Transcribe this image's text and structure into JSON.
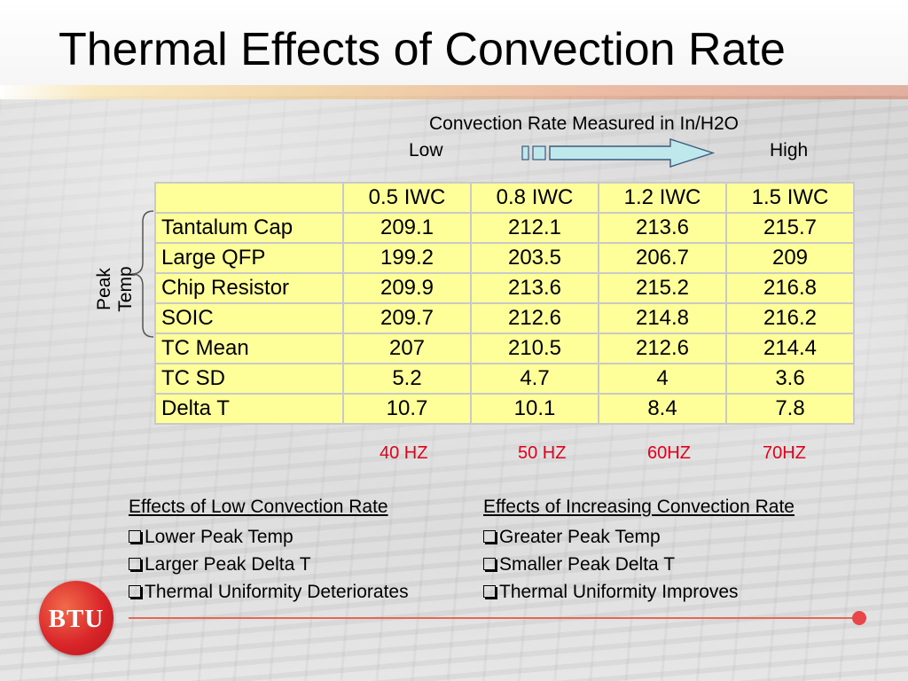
{
  "slide": {
    "title": "Thermal Effects of Convection Rate",
    "convection_label": "Convection Rate Measured in In/H2O",
    "low_label": "Low",
    "high_label": "High",
    "peak_temp_label": "Peak Temp",
    "logo_text": "BTU",
    "accent_color": "#e2001a",
    "cell_color": "#ffff99"
  },
  "table": {
    "headers": [
      "",
      "0.5 IWC",
      "0.8 IWC",
      "1.2 IWC",
      "1.5 IWC"
    ],
    "rows": [
      {
        "label": "Tantalum Cap",
        "values": [
          "209.1",
          "212.1",
          "213.6",
          "215.7"
        ]
      },
      {
        "label": "Large QFP",
        "values": [
          "199.2",
          "203.5",
          "206.7",
          "209"
        ]
      },
      {
        "label": "Chip Resistor",
        "values": [
          "209.9",
          "213.6",
          "215.2",
          "216.8"
        ]
      },
      {
        "label": "SOIC",
        "values": [
          "209.7",
          "212.6",
          "214.8",
          "216.2"
        ]
      },
      {
        "label": "TC Mean",
        "values": [
          "207",
          "210.5",
          "212.6",
          "214.4"
        ]
      },
      {
        "label": "TC SD",
        "values": [
          "5.2",
          "4.7",
          "4",
          "3.6"
        ]
      },
      {
        "label": "Delta T",
        "values": [
          "10.7",
          "10.1",
          "8.4",
          "7.8"
        ]
      }
    ],
    "frequencies": [
      "40 HZ",
      "50 HZ",
      "60HZ",
      "70HZ"
    ]
  },
  "effects_low": {
    "heading": "Effects of Low Convection Rate",
    "items": [
      "Lower Peak Temp",
      "Larger Peak Delta T",
      "Thermal Uniformity Deteriorates"
    ]
  },
  "effects_high": {
    "heading": "Effects of Increasing Convection Rate",
    "items": [
      "Greater Peak Temp",
      "Smaller Peak Delta T",
      "Thermal Uniformity Improves"
    ]
  }
}
